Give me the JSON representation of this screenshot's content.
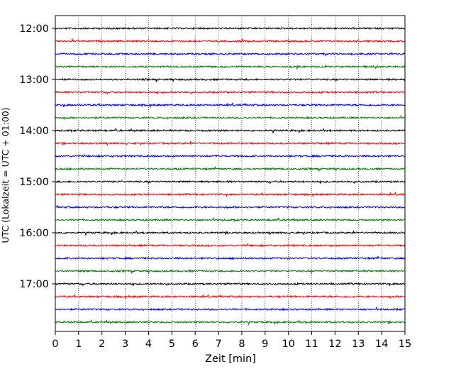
{
  "chart_data": {
    "type": "line",
    "title": "",
    "xlabel": "Zeit  [min]",
    "ylabel": "UTC (Lokalzeit = UTC + 01:00)",
    "xlim": [
      0,
      15
    ],
    "x_ticks": [
      0,
      1,
      2,
      3,
      4,
      5,
      6,
      7,
      8,
      9,
      10,
      11,
      12,
      13,
      14,
      15
    ],
    "x_tick_labels": [
      "0",
      "1",
      "2",
      "3",
      "4",
      "5",
      "6",
      "7",
      "8",
      "9",
      "10",
      "11",
      "12",
      "13",
      "14",
      "15"
    ],
    "y_tick_labels": [
      "12:00",
      "13:00",
      "14:00",
      "15:00",
      "16:00",
      "17:00"
    ],
    "y_tick_times": [
      "12:00",
      "13:00",
      "14:00",
      "15:00",
      "16:00",
      "17:00"
    ],
    "trace_start_times": [
      "12:00",
      "12:15",
      "12:30",
      "12:45",
      "13:00",
      "13:15",
      "13:30",
      "13:45",
      "14:00",
      "14:15",
      "14:30",
      "14:45",
      "15:00",
      "15:15",
      "15:30",
      "15:45",
      "16:00",
      "16:15",
      "16:30",
      "16:45",
      "17:00",
      "17:15",
      "17:30",
      "17:45"
    ],
    "trace_duration_min": 15,
    "trace_colors": [
      "#000000",
      "#ff0000",
      "#0000ff",
      "#008000"
    ],
    "grid": "vertical dotted lines at each minute",
    "legend": "none"
  }
}
